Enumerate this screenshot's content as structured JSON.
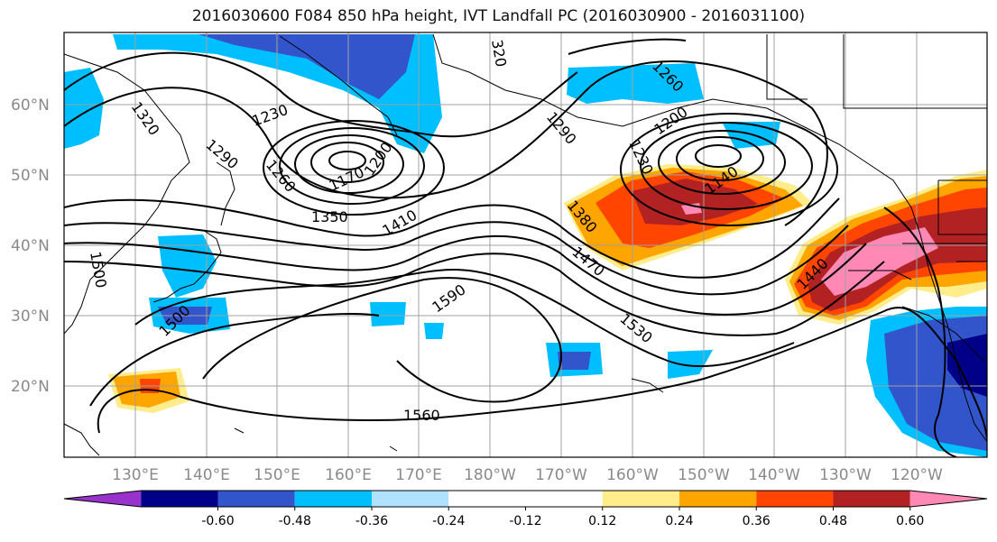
{
  "title": "2016030600 F084 850 hPa height, IVT Landfall PC (2016030900 - 2016031100)",
  "map": {
    "lat_labels": [
      "60°N",
      "50°N",
      "40°N",
      "30°N",
      "20°N"
    ],
    "lon_labels": [
      "130°E",
      "140°E",
      "150°E",
      "160°E",
      "170°E",
      "180°W",
      "170°W",
      "160°W",
      "150°W",
      "140°W",
      "130°W",
      "120°W"
    ],
    "contour_labels": [
      {
        "text": "1320"
      },
      {
        "text": "1230"
      },
      {
        "text": "1290"
      },
      {
        "text": "1170"
      },
      {
        "text": "1200"
      },
      {
        "text": "1260"
      },
      {
        "text": "1350"
      },
      {
        "text": "1410"
      },
      {
        "text": "1500"
      },
      {
        "text": "1500"
      },
      {
        "text": "1590"
      },
      {
        "text": "1560"
      },
      {
        "text": "1470"
      },
      {
        "text": "1530"
      },
      {
        "text": "1380"
      },
      {
        "text": "1290"
      },
      {
        "text": "1230"
      },
      {
        "text": "1260"
      },
      {
        "text": "1200"
      },
      {
        "text": "1140"
      },
      {
        "text": "1440"
      },
      {
        "text": "320"
      }
    ]
  },
  "colorbar": {
    "colors": [
      "#9932cc",
      "#000088",
      "#3355cc",
      "#00bfff",
      "#b0e2ff",
      "#ffffff",
      "#ffffff",
      "#ffec8b",
      "#ffa500",
      "#ff4500",
      "#b22222",
      "#ff88b4"
    ],
    "tick_labels": [
      "-0.60",
      "-0.48",
      "-0.36",
      "-0.24",
      "-0.12",
      "0.12",
      "0.24",
      "0.36",
      "0.48",
      "0.60"
    ]
  }
}
